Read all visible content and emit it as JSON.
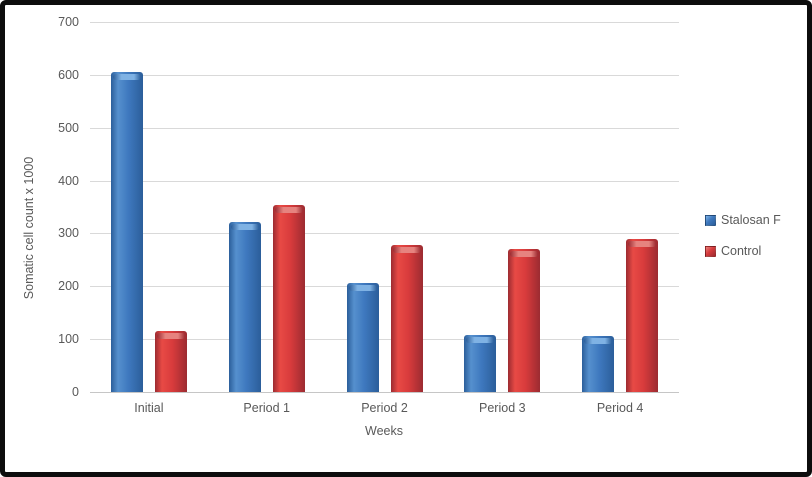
{
  "window": {
    "background": "#FFFFFF",
    "border_color": "#0D0D0D"
  },
  "chart_data": {
    "type": "bar",
    "title": "",
    "xlabel": "Weeks",
    "ylabel": "Somatic cell count x 1000",
    "categories": [
      "Initial",
      "Period 1",
      "Period 2",
      "Period 3",
      "Period 4"
    ],
    "series": [
      {
        "name": "Stalosan F",
        "color": "#3E78BE",
        "edge_color": "#2B5E9A",
        "highlight_color": "#5590CE",
        "cap_color": "#7FB2E4",
        "values": [
          605,
          322,
          206,
          108,
          106
        ]
      },
      {
        "name": "Control",
        "color": "#D83B3C",
        "edge_color": "#9C2B31",
        "highlight_color": "#E84A45",
        "cap_color": "#E6837F",
        "values": [
          116,
          353,
          279,
          270,
          290
        ]
      }
    ],
    "ylim": [
      0,
      700
    ],
    "yticks": [
      0,
      100,
      200,
      300,
      400,
      500,
      600,
      700
    ],
    "grid": true,
    "gridline_color": "#D9D9D9",
    "axis_text_color": "#595959",
    "legend_position": "right"
  }
}
